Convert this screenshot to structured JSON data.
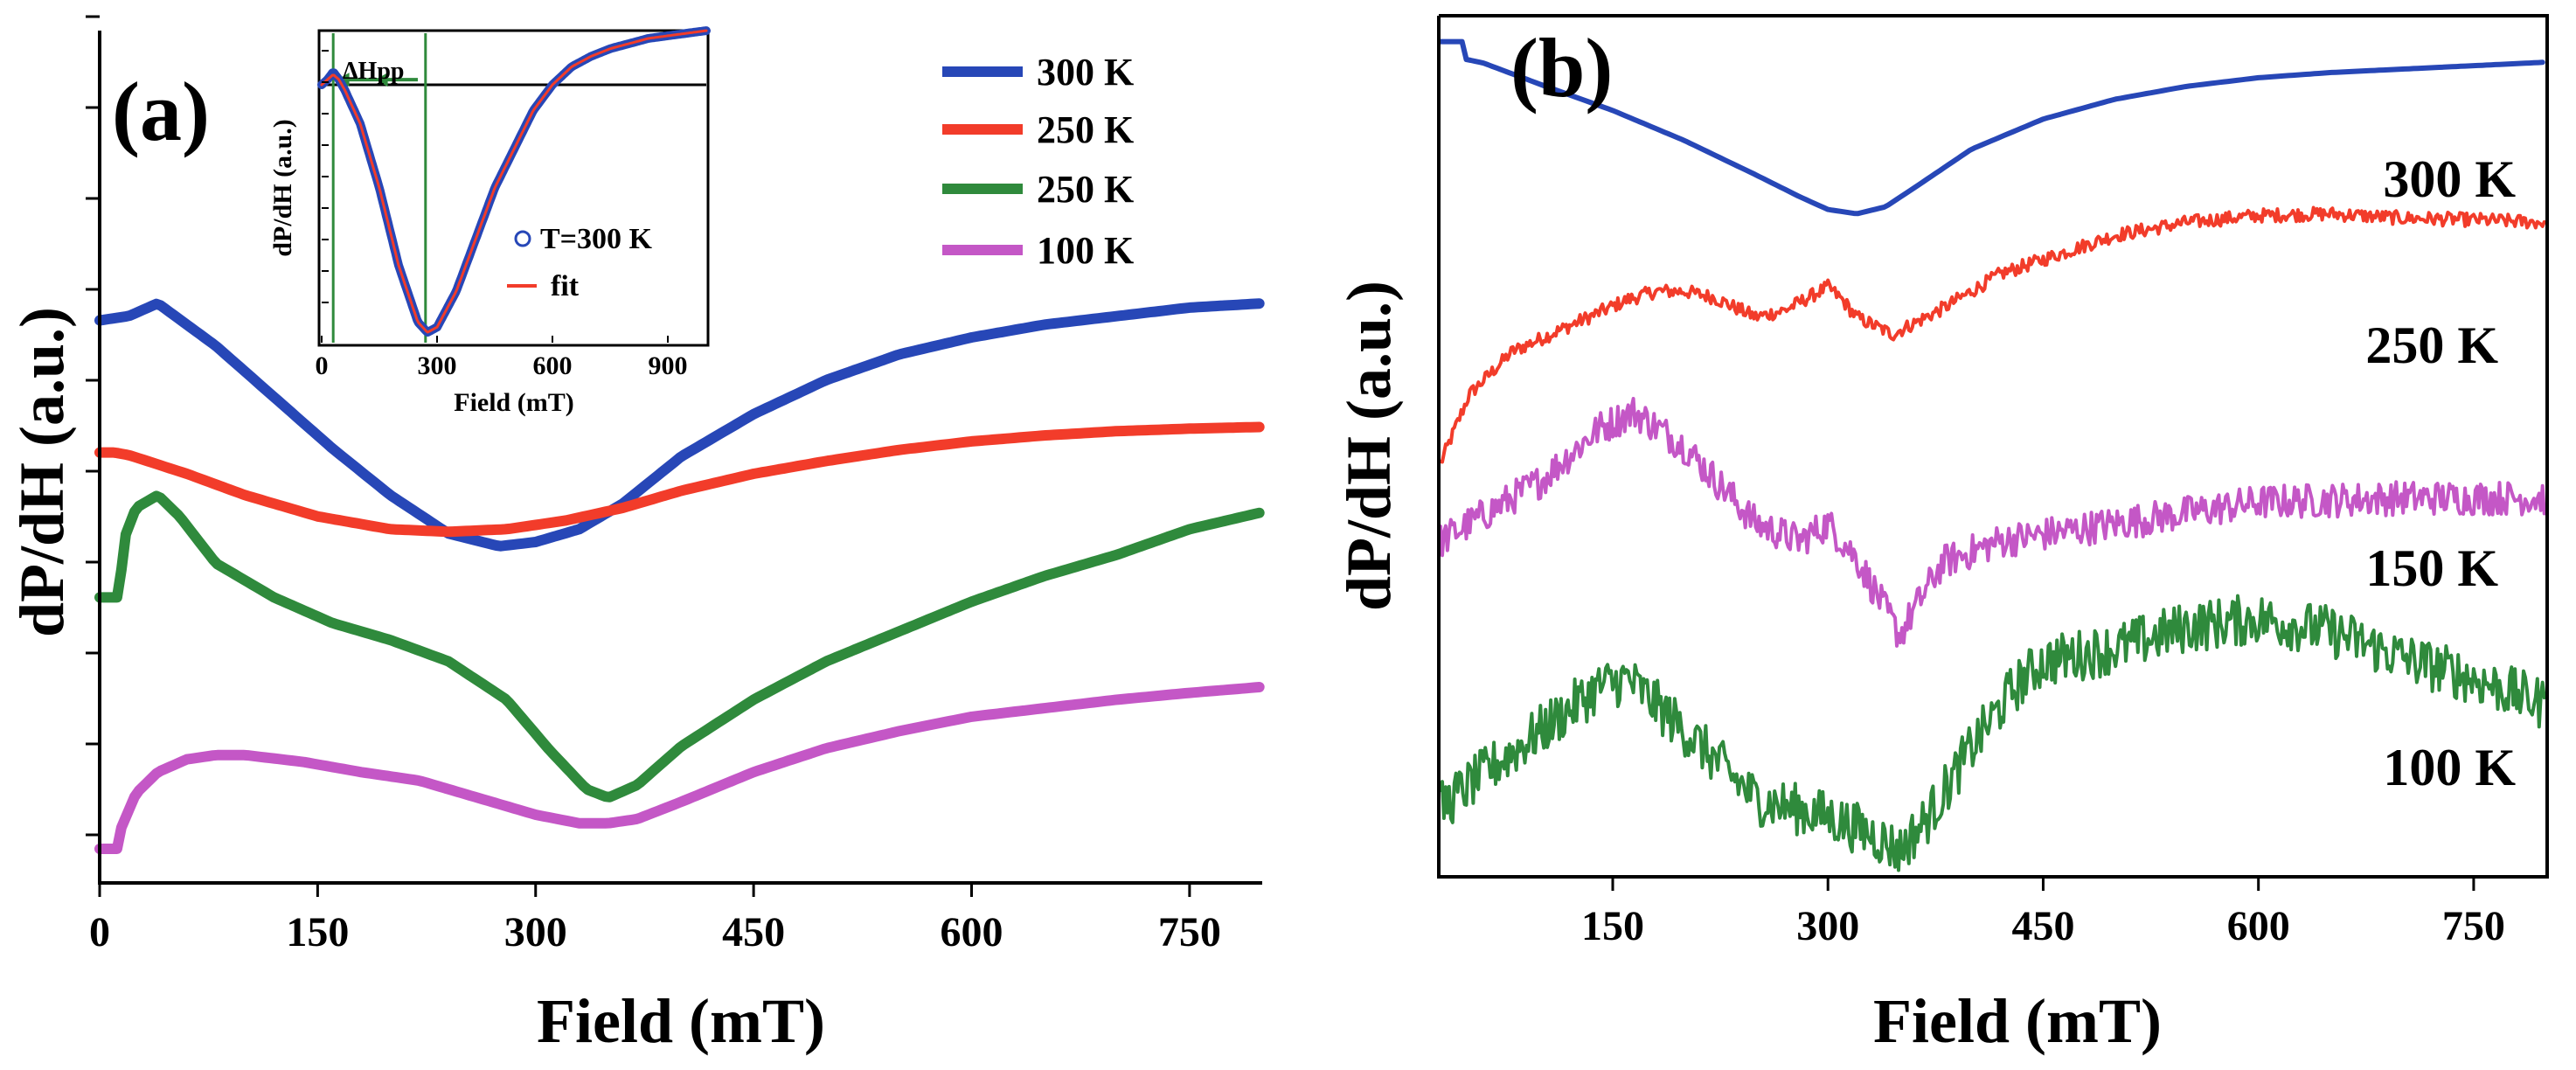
{
  "chart_data": [
    {
      "panel": "(a)",
      "type": "line",
      "xlabel": "Field (mT)",
      "ylabel": "dP/dH (a.u.)",
      "xlim": [
        0,
        800
      ],
      "xticks": [
        0,
        150,
        300,
        450,
        600,
        750
      ],
      "ylim": [
        0,
        100
      ],
      "y_tick_count": 10,
      "legend": {
        "placement": "top-right"
      },
      "series": [
        {
          "name": "300 K",
          "color": "#2747b7",
          "x": [
            0,
            20,
            40,
            80,
            120,
            160,
            200,
            240,
            275,
            300,
            330,
            360,
            400,
            450,
            500,
            550,
            600,
            650,
            700,
            750,
            800
          ],
          "y": [
            66.0,
            66.5,
            68.0,
            63.0,
            57.0,
            51.0,
            45.5,
            41.0,
            39.5,
            40.0,
            41.5,
            44.5,
            50.0,
            55.0,
            59.0,
            62.0,
            64.0,
            65.5,
            66.5,
            67.5,
            68.0
          ]
        },
        {
          "name": "250 K",
          "color": "#f23c2a",
          "x": [
            0,
            10,
            20,
            60,
            100,
            150,
            200,
            240,
            280,
            320,
            360,
            400,
            450,
            500,
            550,
            600,
            650,
            700,
            750,
            800
          ],
          "y": [
            50.5,
            50.5,
            50.2,
            48.0,
            45.5,
            43.0,
            41.5,
            41.2,
            41.5,
            42.5,
            44.0,
            46.0,
            48.0,
            49.5,
            50.8,
            51.8,
            52.5,
            53.0,
            53.3,
            53.5
          ]
        },
        {
          "name": "250 K",
          "color": "#2f8a3c",
          "x": [
            0,
            14,
            16,
            25,
            40,
            55,
            80,
            120,
            160,
            200,
            240,
            280,
            310,
            335,
            350,
            370,
            400,
            450,
            500,
            550,
            600,
            650,
            700,
            750,
            800
          ],
          "y": [
            33.5,
            33.5,
            40.0,
            44.0,
            45.5,
            43.0,
            37.5,
            33.5,
            30.5,
            28.5,
            26.0,
            21.5,
            15.5,
            11.0,
            10.0,
            11.5,
            16.0,
            21.5,
            26.0,
            29.5,
            33.0,
            36.0,
            38.5,
            41.5,
            43.5
          ]
        },
        {
          "name": "100 K",
          "color": "#c457c6",
          "x": [
            0,
            13,
            15,
            25,
            40,
            60,
            80,
            100,
            140,
            180,
            220,
            260,
            300,
            330,
            350,
            370,
            400,
            450,
            500,
            550,
            600,
            650,
            700,
            750,
            800
          ],
          "y": [
            4.0,
            4.0,
            6.5,
            10.5,
            13.0,
            14.5,
            15.0,
            15.0,
            14.2,
            13.0,
            12.0,
            10.0,
            8.0,
            7.0,
            7.0,
            7.5,
            9.5,
            13.0,
            15.8,
            17.8,
            19.5,
            20.5,
            21.5,
            22.3,
            23.0
          ]
        }
      ],
      "inset": {
        "type": "line",
        "xlabel": "Field (mT)",
        "ylabel": "dP/dH (a.u.)",
        "xlim": [
          0,
          1000
        ],
        "xticks": [
          0,
          300,
          600,
          900
        ],
        "ylim": [
          -1,
          0.2
        ],
        "annotation": "ΔHpp",
        "markers_at": [
          30,
          270
        ],
        "legend": [
          {
            "label": "T=300 K",
            "marker": "open-circle",
            "color": "#2747b7"
          },
          {
            "label": "fit",
            "marker": "line",
            "color": "#f23c2a"
          }
        ],
        "series": [
          {
            "name": "T=300 K",
            "color": "#2747b7",
            "x": [
              0,
              15,
              30,
              45,
              60,
              100,
              150,
              200,
              250,
              275,
              300,
              350,
              400,
              450,
              500,
              550,
              600,
              650,
              700,
              750,
              800,
              850,
              900,
              950,
              1000
            ],
            "y": [
              0.0,
              0.02,
              0.05,
              0.02,
              -0.02,
              -0.15,
              -0.4,
              -0.7,
              -0.92,
              -0.96,
              -0.94,
              -0.8,
              -0.6,
              -0.4,
              -0.25,
              -0.1,
              0.0,
              0.07,
              0.11,
              0.14,
              0.16,
              0.18,
              0.19,
              0.2,
              0.21
            ]
          },
          {
            "name": "fit",
            "color": "#f23c2a",
            "x": [
              0,
              15,
              30,
              45,
              60,
              100,
              150,
              200,
              250,
              275,
              300,
              350,
              400,
              450,
              500,
              550,
              600,
              650,
              700,
              750,
              800,
              850,
              900,
              950,
              1000
            ],
            "y": [
              0.0,
              0.02,
              0.04,
              0.02,
              -0.02,
              -0.15,
              -0.4,
              -0.7,
              -0.92,
              -0.96,
              -0.94,
              -0.8,
              -0.6,
              -0.4,
              -0.25,
              -0.1,
              0.0,
              0.07,
              0.11,
              0.14,
              0.16,
              0.18,
              0.19,
              0.2,
              0.21
            ]
          }
        ]
      }
    },
    {
      "panel": "(b)",
      "type": "line",
      "xlabel": "Field (mT)",
      "ylabel": "dP/dH (a.u.)",
      "xlim": [
        30,
        800
      ],
      "xticks": [
        150,
        300,
        450,
        600,
        750
      ],
      "ylim": [
        0,
        100
      ],
      "y_tick_count": 0,
      "series": [
        {
          "name": "300 K",
          "color": "#2747b7",
          "noise": 0,
          "x": [
            30,
            45,
            46,
            60,
            100,
            150,
            200,
            250,
            280,
            300,
            320,
            340,
            360,
            400,
            450,
            500,
            550,
            600,
            650,
            700,
            750,
            800
          ],
          "y": [
            97.0,
            97.0,
            95.0,
            94.5,
            92.0,
            89.0,
            85.5,
            81.5,
            79.0,
            77.5,
            77.0,
            77.8,
            80.0,
            84.5,
            88.0,
            90.3,
            91.8,
            92.8,
            93.4,
            93.8,
            94.2,
            94.6
          ]
        },
        {
          "name": "250 K",
          "color": "#f23c2a",
          "noise": 0.8,
          "x": [
            30,
            50,
            80,
            120,
            160,
            180,
            200,
            220,
            250,
            270,
            300,
            310,
            320,
            345,
            380,
            420,
            500,
            550,
            600,
            650,
            700,
            750,
            800
          ],
          "y": [
            48.0,
            56.0,
            61.0,
            64.0,
            67.0,
            68.0,
            68.0,
            67.3,
            65.0,
            65.8,
            68.5,
            67.0,
            65.0,
            63.0,
            66.0,
            70.0,
            74.5,
            76.0,
            76.8,
            77.0,
            76.5,
            76.3,
            76.0
          ]
        },
        {
          "name": "150 K",
          "color": "#c457c6",
          "noise": 2.0,
          "x": [
            30,
            60,
            100,
            140,
            165,
            200,
            250,
            280,
            300,
            320,
            340,
            350,
            360,
            380,
            420,
            500,
            600,
            700,
            800
          ],
          "y": [
            39.0,
            42.0,
            46.0,
            52.0,
            54.0,
            50.0,
            41.0,
            39.0,
            41.0,
            37.0,
            31.0,
            28.0,
            31.0,
            36.5,
            39.0,
            41.0,
            43.5,
            44.0,
            44.0
          ]
        },
        {
          "name": "100 K",
          "color": "#2f8a3c",
          "noise": 3.0,
          "x": [
            30,
            60,
            100,
            140,
            160,
            200,
            250,
            300,
            330,
            350,
            370,
            400,
            430,
            450,
            500,
            550,
            600,
            650,
            700,
            750,
            800
          ],
          "y": [
            8.0,
            12.0,
            17.0,
            22.0,
            23.0,
            17.0,
            9.0,
            7.0,
            5.0,
            3.0,
            7.0,
            15.0,
            22.0,
            25.0,
            26.5,
            29.0,
            30.0,
            28.5,
            25.5,
            23.0,
            20.0
          ]
        }
      ],
      "curve_labels": [
        "300 K",
        "250 K",
        "150 K",
        "100 K"
      ]
    }
  ]
}
